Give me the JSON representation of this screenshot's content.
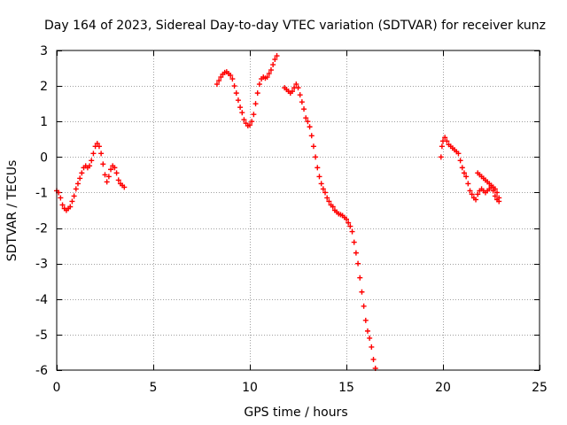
{
  "chart_data": {
    "type": "scatter",
    "title": "Day 164 of 2023, Sidereal Day-to-day VTEC variation (SDTVAR) for receiver kunz",
    "xlabel": "GPS time / hours",
    "ylabel": "SDTVAR / TECUs",
    "xlim": [
      0,
      25
    ],
    "ylim": [
      -6,
      3
    ],
    "xticks": [
      0,
      5,
      10,
      15,
      20,
      25
    ],
    "yticks": [
      -6,
      -5,
      -4,
      -3,
      -2,
      -1,
      0,
      1,
      2,
      3
    ],
    "grid": true,
    "marker": "+",
    "color": "#ff0000",
    "series": [
      {
        "points": [
          [
            0.0,
            -0.95
          ],
          [
            0.1,
            -1.0
          ],
          [
            0.2,
            -1.15
          ],
          [
            0.3,
            -1.35
          ],
          [
            0.4,
            -1.45
          ],
          [
            0.5,
            -1.5
          ],
          [
            0.6,
            -1.45
          ],
          [
            0.7,
            -1.4
          ],
          [
            0.8,
            -1.25
          ],
          [
            0.9,
            -1.1
          ],
          [
            1.0,
            -0.9
          ],
          [
            1.1,
            -0.75
          ],
          [
            1.2,
            -0.6
          ],
          [
            1.3,
            -0.45
          ],
          [
            1.4,
            -0.3
          ],
          [
            1.5,
            -0.25
          ],
          [
            1.6,
            -0.3
          ],
          [
            1.7,
            -0.25
          ],
          [
            1.8,
            -0.1
          ],
          [
            1.9,
            0.1
          ],
          [
            2.0,
            0.3
          ],
          [
            2.1,
            0.38
          ],
          [
            2.2,
            0.3
          ],
          [
            2.3,
            0.1
          ],
          [
            2.4,
            -0.2
          ],
          [
            2.5,
            -0.5
          ],
          [
            2.6,
            -0.7
          ],
          [
            2.7,
            -0.55
          ],
          [
            2.8,
            -0.35
          ],
          [
            2.9,
            -0.25
          ],
          [
            3.0,
            -0.3
          ],
          [
            3.1,
            -0.45
          ],
          [
            3.2,
            -0.65
          ],
          [
            3.3,
            -0.75
          ],
          [
            3.4,
            -0.8
          ],
          [
            3.5,
            -0.85
          ]
        ]
      },
      {
        "points": [
          [
            8.3,
            2.05
          ],
          [
            8.4,
            2.15
          ],
          [
            8.5,
            2.25
          ],
          [
            8.6,
            2.33
          ],
          [
            8.7,
            2.38
          ],
          [
            8.8,
            2.4
          ],
          [
            8.9,
            2.35
          ],
          [
            9.0,
            2.3
          ],
          [
            9.1,
            2.2
          ],
          [
            9.2,
            2.0
          ],
          [
            9.3,
            1.8
          ],
          [
            9.4,
            1.6
          ],
          [
            9.5,
            1.4
          ],
          [
            9.6,
            1.25
          ],
          [
            9.7,
            1.05
          ],
          [
            9.8,
            0.95
          ],
          [
            9.9,
            0.88
          ],
          [
            10.0,
            0.9
          ],
          [
            10.1,
            1.0
          ],
          [
            10.2,
            1.2
          ],
          [
            10.3,
            1.5
          ],
          [
            10.4,
            1.8
          ],
          [
            10.5,
            2.05
          ],
          [
            10.6,
            2.2
          ],
          [
            10.7,
            2.25
          ],
          [
            10.8,
            2.22
          ],
          [
            10.9,
            2.25
          ],
          [
            11.0,
            2.35
          ],
          [
            11.1,
            2.45
          ],
          [
            11.2,
            2.6
          ],
          [
            11.3,
            2.75
          ],
          [
            11.4,
            2.85
          ]
        ]
      },
      {
        "points": [
          [
            11.8,
            1.95
          ],
          [
            11.9,
            1.9
          ],
          [
            12.0,
            1.85
          ],
          [
            12.1,
            1.8
          ],
          [
            12.2,
            1.85
          ],
          [
            12.3,
            1.95
          ],
          [
            12.4,
            2.05
          ],
          [
            12.5,
            1.95
          ],
          [
            12.6,
            1.75
          ],
          [
            12.7,
            1.55
          ],
          [
            12.8,
            1.35
          ],
          [
            12.9,
            1.1
          ],
          [
            13.0,
            1.0
          ],
          [
            13.1,
            0.85
          ],
          [
            13.2,
            0.6
          ],
          [
            13.3,
            0.3
          ],
          [
            13.4,
            0.0
          ],
          [
            13.5,
            -0.3
          ],
          [
            13.6,
            -0.55
          ],
          [
            13.7,
            -0.75
          ],
          [
            13.8,
            -0.9
          ],
          [
            13.9,
            -1.0
          ],
          [
            14.0,
            -1.15
          ],
          [
            14.1,
            -1.25
          ],
          [
            14.2,
            -1.35
          ],
          [
            14.3,
            -1.4
          ],
          [
            14.4,
            -1.5
          ],
          [
            14.5,
            -1.55
          ],
          [
            14.6,
            -1.6
          ],
          [
            14.7,
            -1.62
          ],
          [
            14.8,
            -1.65
          ],
          [
            14.9,
            -1.7
          ],
          [
            15.0,
            -1.75
          ],
          [
            15.1,
            -1.85
          ],
          [
            15.2,
            -1.95
          ],
          [
            15.3,
            -2.1
          ],
          [
            15.4,
            -2.4
          ],
          [
            15.5,
            -2.7
          ],
          [
            15.6,
            -3.0
          ],
          [
            15.7,
            -3.4
          ],
          [
            15.8,
            -3.8
          ],
          [
            15.9,
            -4.2
          ],
          [
            16.0,
            -4.6
          ],
          [
            16.1,
            -4.9
          ],
          [
            16.2,
            -5.1
          ],
          [
            16.3,
            -5.35
          ],
          [
            16.4,
            -5.7
          ],
          [
            16.5,
            -5.95
          ]
        ]
      },
      {
        "points": [
          [
            19.9,
            0.0
          ],
          [
            19.95,
            0.3
          ],
          [
            20.0,
            0.45
          ],
          [
            20.1,
            0.55
          ],
          [
            20.2,
            0.45
          ],
          [
            20.3,
            0.35
          ],
          [
            20.4,
            0.3
          ],
          [
            20.5,
            0.25
          ],
          [
            20.6,
            0.2
          ],
          [
            20.7,
            0.15
          ],
          [
            20.8,
            0.1
          ],
          [
            20.9,
            -0.1
          ],
          [
            21.0,
            -0.3
          ],
          [
            21.1,
            -0.45
          ],
          [
            21.2,
            -0.55
          ],
          [
            21.3,
            -0.75
          ],
          [
            21.4,
            -0.95
          ],
          [
            21.5,
            -1.05
          ],
          [
            21.6,
            -1.15
          ],
          [
            21.7,
            -1.2
          ],
          [
            21.8,
            -1.05
          ],
          [
            21.9,
            -0.95
          ],
          [
            22.0,
            -0.9
          ],
          [
            22.1,
            -0.95
          ],
          [
            22.2,
            -1.0
          ],
          [
            22.3,
            -0.95
          ],
          [
            22.4,
            -0.9
          ],
          [
            22.5,
            -0.85
          ],
          [
            22.6,
            -0.95
          ],
          [
            22.7,
            -1.1
          ],
          [
            22.8,
            -1.2
          ],
          [
            22.9,
            -1.25
          ]
        ]
      },
      {
        "points": [
          [
            21.8,
            -0.45
          ],
          [
            21.9,
            -0.5
          ],
          [
            22.0,
            -0.55
          ],
          [
            22.1,
            -0.6
          ],
          [
            22.2,
            -0.65
          ],
          [
            22.3,
            -0.7
          ],
          [
            22.4,
            -0.75
          ],
          [
            22.5,
            -0.8
          ],
          [
            22.6,
            -0.85
          ],
          [
            22.7,
            -0.9
          ],
          [
            22.8,
            -1.0
          ],
          [
            22.9,
            -1.15
          ]
        ]
      }
    ]
  }
}
